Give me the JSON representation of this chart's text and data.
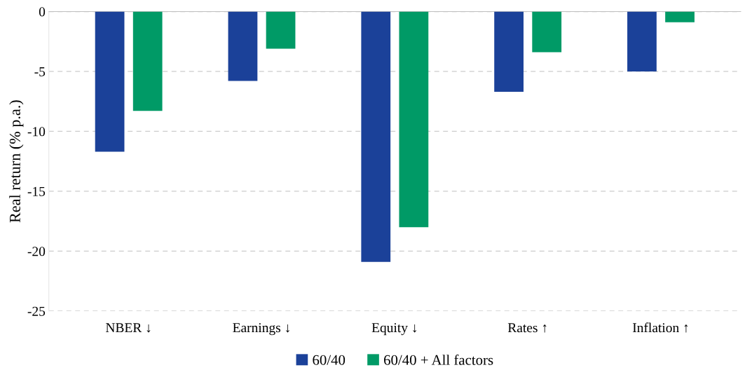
{
  "chart_data": {
    "type": "bar",
    "ylabel": "Real return (% p.a.)",
    "categories": [
      "NBER ↓",
      "Earnings ↓",
      "Equity ↓",
      "Rates ↑",
      "Inflation ↑"
    ],
    "series": [
      {
        "name": "60/40",
        "color": "#1b4199",
        "values": [
          -11.7,
          -5.8,
          -20.9,
          -6.7,
          -5.0
        ]
      },
      {
        "name": "60/40 + All factors",
        "color": "#009a66",
        "values": [
          -8.3,
          -3.1,
          -18.0,
          -3.4,
          -0.9
        ]
      }
    ],
    "ylim": [
      -25,
      0
    ],
    "yticks": [
      -25,
      -20,
      -15,
      -10,
      -5,
      0
    ],
    "grid": "y",
    "legend": "bottom"
  }
}
